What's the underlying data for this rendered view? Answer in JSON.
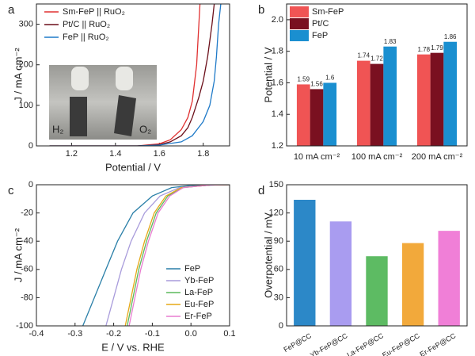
{
  "chart_data": [
    {
      "type": "line",
      "panel_label": "a",
      "x_label": "Potential / V",
      "y_label": "J / mA cm⁻²",
      "xlim": [
        1.04,
        1.92
      ],
      "xticks": [
        1.2,
        1.4,
        1.6,
        1.8
      ],
      "ylim": [
        0,
        350
      ],
      "yticks": [
        0,
        100,
        200,
        300
      ],
      "legend": "upper left",
      "annotations": [
        "H₂",
        "O₂"
      ],
      "series": [
        {
          "name": "Sm-FeP || RuO₂",
          "color": "#e03030",
          "x": [
            1.1,
            1.5,
            1.6,
            1.65,
            1.7,
            1.73,
            1.75,
            1.77,
            1.78,
            1.785
          ],
          "values": [
            0,
            0,
            5,
            15,
            40,
            70,
            110,
            200,
            300,
            350
          ]
        },
        {
          "name": "Pt/C || RuO₂",
          "color": "#6b0f1a",
          "x": [
            1.1,
            1.5,
            1.6,
            1.65,
            1.7,
            1.73,
            1.75,
            1.78,
            1.8,
            1.82,
            1.84,
            1.85
          ],
          "values": [
            0,
            0,
            3,
            10,
            25,
            45,
            70,
            120,
            160,
            220,
            300,
            350
          ]
        },
        {
          "name": "FeP || RuO₂",
          "color": "#1f7ac8",
          "x": [
            1.1,
            1.5,
            1.6,
            1.7,
            1.75,
            1.8,
            1.83,
            1.85,
            1.86,
            1.87,
            1.88
          ],
          "values": [
            0,
            0,
            2,
            10,
            25,
            60,
            100,
            160,
            220,
            300,
            350
          ]
        }
      ]
    },
    {
      "type": "bar",
      "panel_label": "b",
      "y_label": "Potential / V",
      "categories": [
        "10 mA cm⁻²",
        "100 mA cm⁻²",
        "200 mA cm⁻²"
      ],
      "ylim": [
        1.2,
        2.1
      ],
      "yticks": [
        1.2,
        1.4,
        1.6,
        1.8,
        {
          "value": 2,
          "label": "2.0"
        }
      ],
      "legend": "upper left",
      "series": [
        {
          "name": "Sm-FeP",
          "color": "#f05454",
          "values": [
            1.59,
            1.74,
            1.78
          ]
        },
        {
          "name": "Pt/C",
          "color": "#7a1020",
          "values": [
            1.56,
            1.72,
            1.79
          ]
        },
        {
          "name": "FeP",
          "color": "#1a8fd0",
          "values": [
            1.6,
            1.83,
            1.86
          ]
        }
      ]
    },
    {
      "type": "line",
      "panel_label": "c",
      "x_label": "E / V vs. RHE",
      "y_label": "J / mA cm⁻²",
      "xlim": [
        -0.4,
        0.1
      ],
      "xticks": [
        -0.4,
        -0.3,
        -0.2,
        -0.1,
        {
          "value": 0,
          "label": "0.0"
        },
        0.1
      ],
      "ylim": [
        -100,
        0
      ],
      "yticks": [
        -100,
        -80,
        -60,
        -40,
        -20,
        0
      ],
      "legend": "lower right",
      "series": [
        {
          "name": "FeP",
          "color": "#2a7fa8",
          "x": [
            -0.28,
            -0.25,
            -0.22,
            -0.19,
            -0.15,
            -0.1,
            -0.05,
            0,
            0.1
          ],
          "values": [
            -100,
            -80,
            -60,
            -40,
            -20,
            -8,
            -2,
            -0.5,
            0
          ]
        },
        {
          "name": "Yb-FeP",
          "color": "#a89bdb",
          "x": [
            -0.22,
            -0.2,
            -0.18,
            -0.155,
            -0.12,
            -0.08,
            -0.03,
            0.05,
            0.1
          ],
          "values": [
            -100,
            -80,
            -60,
            -40,
            -20,
            -8,
            -2,
            -0.3,
            0
          ]
        },
        {
          "name": "La-FeP",
          "color": "#5cb85c",
          "x": [
            -0.165,
            -0.15,
            -0.135,
            -0.115,
            -0.09,
            -0.06,
            -0.02,
            0.05,
            0.1
          ],
          "values": [
            -100,
            -80,
            -60,
            -40,
            -20,
            -8,
            -2,
            -0.2,
            0
          ]
        },
        {
          "name": "Eu-FeP",
          "color": "#e6a817",
          "x": [
            -0.17,
            -0.155,
            -0.14,
            -0.12,
            -0.095,
            -0.065,
            -0.025,
            0.05,
            0.1
          ],
          "values": [
            -100,
            -80,
            -60,
            -40,
            -20,
            -8,
            -2,
            -0.2,
            0
          ]
        },
        {
          "name": "Er-FeP",
          "color": "#e87dd0",
          "x": [
            -0.16,
            -0.145,
            -0.13,
            -0.11,
            -0.085,
            -0.055,
            -0.02,
            0.05,
            0.1
          ],
          "values": [
            -100,
            -80,
            -60,
            -40,
            -20,
            -8,
            -2,
            -0.2,
            0
          ]
        }
      ]
    },
    {
      "type": "bar",
      "panel_label": "d",
      "y_label": "Overpotential / mV",
      "categories": [
        "FeP@CC",
        "Yb-FeP@CC",
        "La-FeP@CC",
        "Eu-FeP@CC",
        "Er-FeP@CC"
      ],
      "colors": [
        "#2c88c8",
        "#a99cf0",
        "#5dbb63",
        "#f2a93b",
        "#f07fd7"
      ],
      "values": [
        134,
        111,
        74,
        88,
        101
      ],
      "ylim": [
        0,
        150
      ],
      "yticks": [
        0,
        30,
        60,
        90,
        120,
        150
      ]
    }
  ]
}
